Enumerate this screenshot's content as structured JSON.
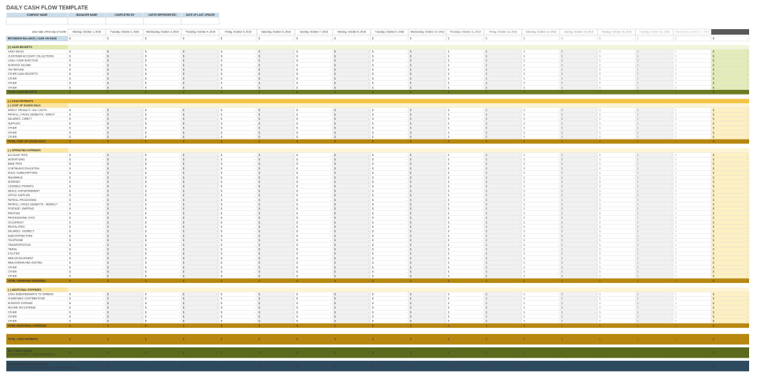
{
  "title": "DAILY CASH FLOW TEMPLATE",
  "header_fields": [
    "COMPANY NAME",
    "MANAGER NAME",
    "COMPLETED BY",
    "DATES REPRESENTED",
    "DATE OF LAST UPDATE"
  ],
  "first_day_prompt": "enter date of first day of month",
  "dates": [
    "Monday, October 1, 2018",
    "Tuesday, October 2, 2018",
    "Wednesday, October 3, 2018",
    "Thursday, October 4, 2018",
    "Friday, October 5, 2018",
    "Saturday, October 6, 2018",
    "Sunday, October 7, 2018",
    "Monday, October 8, 2018",
    "Tuesday, October 9, 2018",
    "Wednesday, October 10, 2018",
    "Thursday, October 11, 2018",
    "Friday, October 12, 2018",
    "Saturday, October 13, 2018",
    "Sunday, October 14, 2018",
    "Monday, October 15, 2018",
    "Tuesday, October 16, 2018",
    "Wednesday, October 17, 2018"
  ],
  "cell": {
    "currency": "$",
    "blank": "-"
  },
  "beginning_balance": "BEGINNING BALANCE | CASH ON HAND",
  "receipts": {
    "header": "(+) CASH RECEIPTS",
    "items": [
      "CASH SALES",
      "CUSTOMER ACCOUNT COLLECTIONS",
      "LOAN / CASH INJECTION",
      "INTEREST INCOME",
      "TAX REFUND",
      "OTHER CASH RECEIPTS",
      "OTHER",
      "OTHER",
      "OTHER"
    ],
    "total": "TOTAL CASH RECEIPTS"
  },
  "payments": {
    "header": "(−) CASH PAYMENTS",
    "groups": [
      {
        "header": "(−) COST OF GOODS SOLD",
        "items": [
          "DIRECT PRODUCT / SVC COSTS",
          "PAYROLL | TAXES | BENEFITS - DIRECT",
          "SALARIES - DIRECT",
          "SUPPLIES",
          "OTHER",
          "OTHER",
          "OTHER"
        ],
        "total": "TOTAL COST OF GOODS SOLD"
      },
      {
        "header": "(−) OPERATING EXPENSES",
        "items": [
          "ACCOUNT FEES",
          "ADVERTISING",
          "BANK FEES",
          "CONTINUING EDUCATION",
          "DUES / SUBSCRIPTIONS",
          "INSURANCE",
          "INTERNET",
          "LICENSES / PERMITS",
          "MEALS / ENTERTAINMENT",
          "OFFICE SUPPLIES",
          "PAYROLL PROCESSING",
          "PAYROLL | TAXES | BENEFITS - INDIRECT",
          "POSTAGE / SHIPPING",
          "PRINTING",
          "PROFESSIONAL SVCS",
          "OCCUPANCY",
          "RENTAL FEES",
          "SALARIES - INDIRECT",
          "SUBCONTRACTORS",
          "TELEPHONE",
          "TRANSPORTATION",
          "TRAVEL",
          "UTILITIES",
          "WEB DEVELOPMENT",
          "WEB DOMAIN AND HOSTING",
          "OTHER",
          "OTHER",
          "OTHER"
        ],
        "total": "TOTAL OPERATING EXPENSES"
      },
      {
        "header": "(−) ADDITIONAL EXPENSES",
        "items": [
          "CASH DISBURSEMENTS TO OWNERS",
          "CHARITABLE CONTRIBUTIONS",
          "INTEREST EXPENSE",
          "INCOME TAX EXPENSE",
          "OTHER",
          "OTHER",
          "OTHER"
        ],
        "total": "TOTAL ADDITIONAL EXPENSES"
      }
    ],
    "total": "TOTAL CASH PAYMENTS"
  },
  "net_cash_change": {
    "label": "NET CASH CHANGE",
    "note": "[ CASH RECEIPTS − CASH PAYMENTS ]"
  },
  "month_ending": {
    "label": "MONTH ENDING CASH POSITION",
    "note": "[ CASH ON HAND + CASH RECEIPTS − CASH PAYMENTS ]"
  }
}
